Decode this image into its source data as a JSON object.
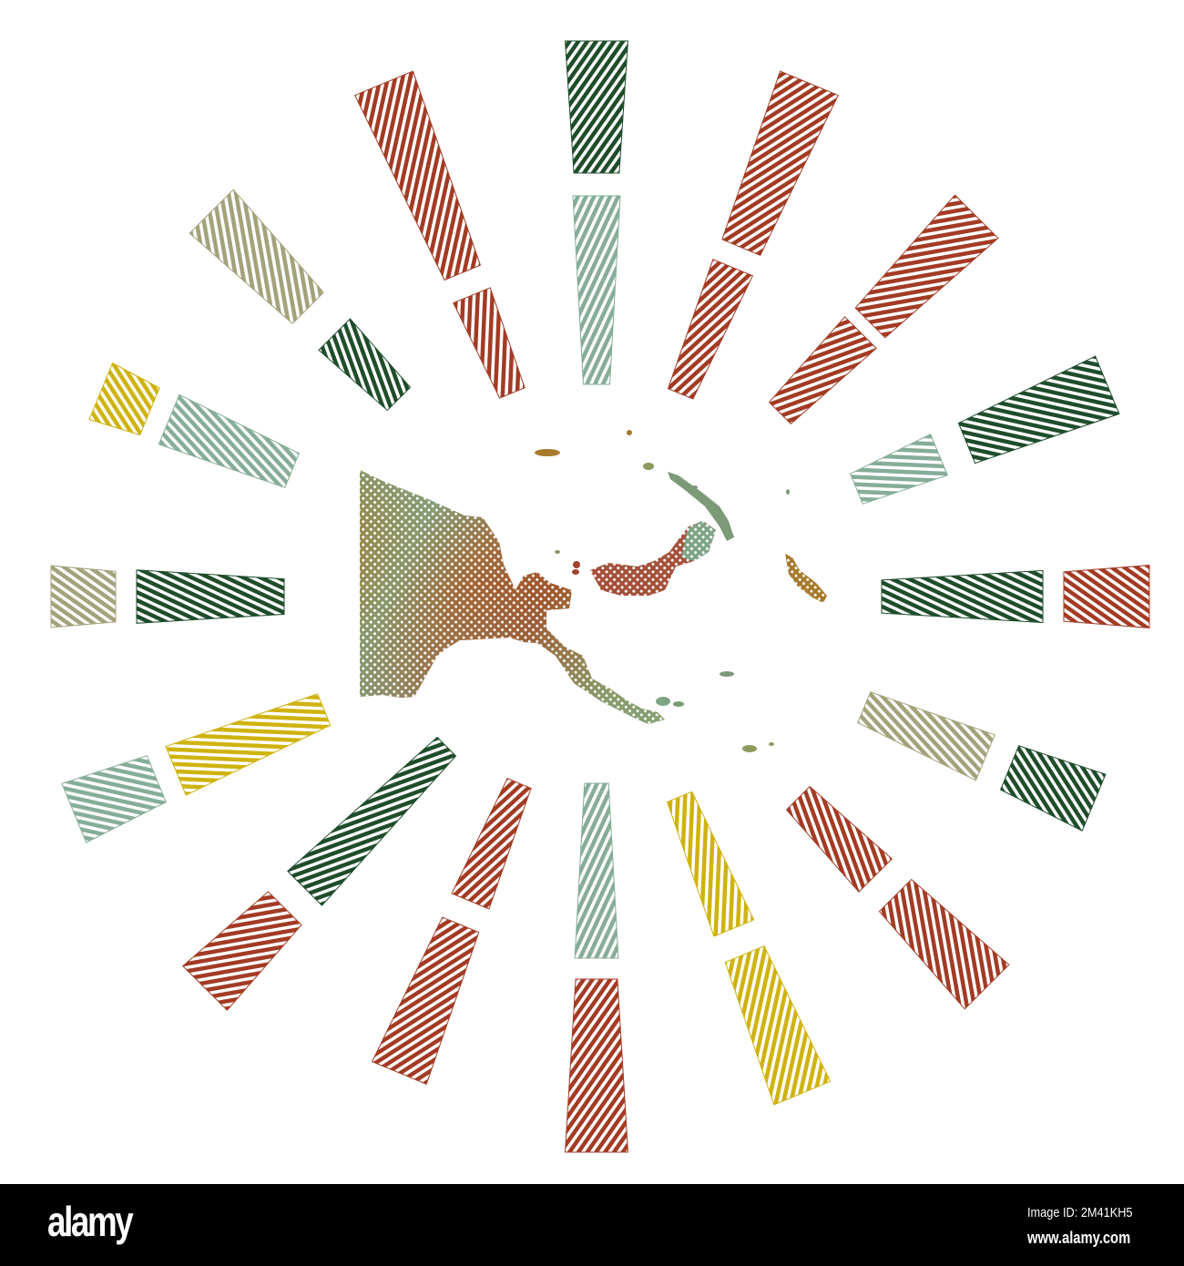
{
  "palette": {
    "dark-green": "#1f4d2c",
    "red": "#a33b24",
    "pale-green": "#86ad98",
    "khaki": "#a4a27b",
    "yellow": "#cfb30e"
  },
  "sunburst": {
    "rays": [
      {
        "inner": "pale-green",
        "outer": "dark-green"
      },
      {
        "inner": "red",
        "outer": "red"
      },
      {
        "inner": "red",
        "outer": "red"
      },
      {
        "inner": "pale-green",
        "outer": "dark-green"
      },
      {
        "inner": "dark-green",
        "outer": "red"
      },
      {
        "inner": "khaki",
        "outer": "dark-green"
      },
      {
        "inner": "red",
        "outer": "red"
      },
      {
        "inner": "yellow",
        "outer": "yellow"
      },
      {
        "inner": "pale-green",
        "outer": "red"
      },
      {
        "inner": "red",
        "outer": "red"
      },
      {
        "inner": "dark-green",
        "outer": "red"
      },
      {
        "inner": "yellow",
        "outer": "pale-green"
      },
      {
        "inner": "dark-green",
        "outer": "khaki"
      },
      {
        "inner": "pale-green",
        "outer": "yellow"
      },
      {
        "inner": "dark-green",
        "outer": "khaki"
      },
      {
        "inner": "red",
        "outer": "red"
      }
    ]
  },
  "map": {
    "fill_colors": [
      "#a6792c",
      "#8c9a5e",
      "#7ea486",
      "#a1603e",
      "#a0432c"
    ]
  },
  "watermark": {
    "logo": "alamy",
    "image_id": "Image ID: 2M41KH5",
    "url": "www.alamy.com"
  }
}
